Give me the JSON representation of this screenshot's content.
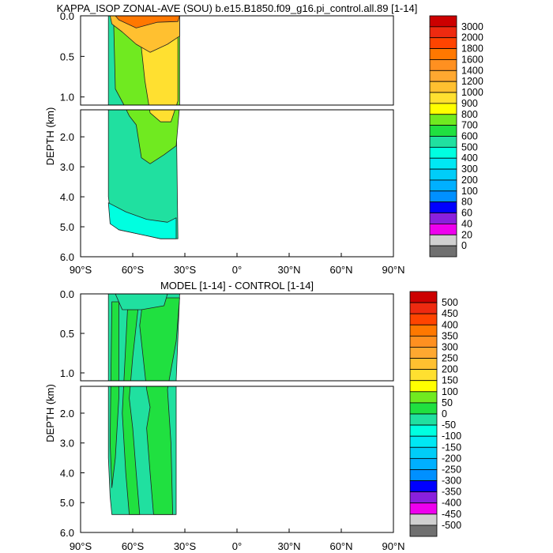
{
  "chart_data": [
    {
      "type": "heatmap",
      "title": "KAPPA_ISOP ZONAL-AVE (SOU) b.e15.B1850.f09_g16.pi_control.all.89 [1-14]",
      "xlabel": "",
      "ylabel": "DEPTH (km)",
      "x_ticks": [
        "90°S",
        "60°S",
        "30°S",
        "0°",
        "30°N",
        "60°N",
        "90°N"
      ],
      "xlim": [
        -90,
        90
      ],
      "y_ticks_upper": [
        "0.0",
        "0.5",
        "1.0"
      ],
      "y_ticks_lower": [
        "2.0",
        "3.0",
        "4.0",
        "5.0",
        "6.0"
      ],
      "ylim": [
        0,
        6
      ],
      "depth_break": 1.1,
      "colorbar_levels": [
        "3000",
        "2000",
        "1800",
        "1600",
        "1400",
        "1200",
        "1000",
        "900",
        "800",
        "700",
        "600",
        "500",
        "400",
        "300",
        "200",
        "100",
        "80",
        "60",
        "40",
        "20",
        "0"
      ],
      "colorbar_colors": [
        "#cc0000",
        "#ee2a10",
        "#ff4400",
        "#ff7800",
        "#ff9020",
        "#ffa830",
        "#ffc030",
        "#ffe030",
        "#ffff00",
        "#70ea20",
        "#20e040",
        "#20e0a0",
        "#00ffe0",
        "#00e8f4",
        "#00cdf8",
        "#00b0ff",
        "#0090ff",
        "#0000ff",
        "#8a20dd",
        "#ee00ee",
        "#d0d0d0",
        "#707070"
      ],
      "regions": [
        {
          "name": "base",
          "value": 500,
          "poly": [
            [
              -74,
              0
            ],
            [
              -33,
              0
            ],
            [
              -35,
              1.1
            ],
            [
              -34,
              5.4
            ],
            [
              -44,
              5.4
            ],
            [
              -52,
              5.3
            ],
            [
              -60,
              5.2
            ],
            [
              -68,
              5.1
            ],
            [
              -72,
              4.9
            ],
            [
              -74,
              4
            ]
          ]
        },
        {
          "name": "deep",
          "value": 400,
          "poly": [
            [
              -74,
              4.2
            ],
            [
              -64,
              4.5
            ],
            [
              -52,
              4.75
            ],
            [
              -40,
              4.85
            ],
            [
              -35,
              4.7
            ],
            [
              -35,
              5.4
            ],
            [
              -44,
              5.4
            ],
            [
              -52,
              5.3
            ],
            [
              -60,
              5.2
            ],
            [
              -68,
              5.1
            ],
            [
              -73,
              4.9
            ]
          ]
        },
        {
          "name": "upper-green",
          "value": 700,
          "poly": [
            [
              -71,
              0.05
            ],
            [
              -33,
              0.05
            ],
            [
              -33,
              1.1
            ],
            [
              -35,
              2.3
            ],
            [
              -42,
              2.6
            ],
            [
              -50,
              2.9
            ],
            [
              -55,
              2.7
            ],
            [
              -58,
              1.6
            ],
            [
              -62,
              1.3
            ],
            [
              -65,
              1.1
            ],
            [
              -70,
              0.9
            ]
          ]
        },
        {
          "name": "yellow",
          "value": 900,
          "poly": [
            [
              -56,
              0.1
            ],
            [
              -34,
              0.1
            ],
            [
              -34,
              1.05
            ],
            [
              -38,
              1.5
            ],
            [
              -44,
              1.5
            ],
            [
              -50,
              1.2
            ],
            [
              -53,
              0.8
            ],
            [
              -55,
              0.4
            ]
          ]
        },
        {
          "name": "orange",
          "value": 1100,
          "poly": [
            [
              -73,
              0
            ],
            [
              -33,
              0
            ],
            [
              -33,
              0.25
            ],
            [
              -40,
              0.35
            ],
            [
              -50,
              0.45
            ],
            [
              -58,
              0.35
            ],
            [
              -66,
              0.2
            ],
            [
              -72,
              0.1
            ]
          ]
        },
        {
          "name": "surface",
          "value": 1600,
          "poly": [
            [
              -70,
              0
            ],
            [
              -33,
              0
            ],
            [
              -34,
              0.07
            ],
            [
              -46,
              0.08
            ],
            [
              -58,
              0.15
            ],
            [
              -68,
              0.05
            ]
          ]
        }
      ]
    },
    {
      "type": "heatmap",
      "title": "MODEL [1-14] - CONTROL [1-14]",
      "xlabel": "",
      "ylabel": "DEPTH (km)",
      "x_ticks": [
        "90°S",
        "60°S",
        "30°S",
        "0°",
        "30°N",
        "60°N",
        "90°N"
      ],
      "xlim": [
        -90,
        90
      ],
      "y_ticks_upper": [
        "0.0",
        "0.5",
        "1.0"
      ],
      "y_ticks_lower": [
        "2.0",
        "3.0",
        "4.0",
        "5.0",
        "6.0"
      ],
      "ylim": [
        0,
        6
      ],
      "depth_break": 1.1,
      "colorbar_levels": [
        "500",
        "450",
        "400",
        "350",
        "300",
        "250",
        "200",
        "150",
        "100",
        "50",
        "0",
        "-50",
        "-100",
        "-150",
        "-200",
        "-250",
        "-300",
        "-350",
        "-400",
        "-450",
        "-500"
      ],
      "colorbar_colors": [
        "#cc0000",
        "#ee2a10",
        "#ff4400",
        "#ff7800",
        "#ff9020",
        "#ffa830",
        "#ffc030",
        "#ffe030",
        "#ffff00",
        "#70ea20",
        "#20e040",
        "#20e0a0",
        "#00ffe0",
        "#00e8f4",
        "#00cdf8",
        "#00b0ff",
        "#0090ff",
        "#0000ff",
        "#8a20dd",
        "#ee00ee",
        "#d0d0d0",
        "#707070"
      ],
      "regions": [
        {
          "name": "base",
          "value": -20,
          "poly": [
            [
              -74,
              0
            ],
            [
              -33,
              0
            ],
            [
              -35,
              1.1
            ],
            [
              -35,
              5.4
            ],
            [
              -72,
              5.4
            ],
            [
              -73,
              4.8
            ],
            [
              -74,
              3.5
            ]
          ]
        },
        {
          "name": "band-a",
          "value": 20,
          "poly": [
            [
              -72,
              0.1
            ],
            [
              -68,
              0.1
            ],
            [
              -68,
              1.5
            ],
            [
              -70,
              3.5
            ],
            [
              -72,
              4.5
            ],
            [
              -73,
              3
            ]
          ]
        },
        {
          "name": "band-b",
          "value": 20,
          "poly": [
            [
              -63,
              0.2
            ],
            [
              -57,
              0.2
            ],
            [
              -60,
              0.8
            ],
            [
              -62,
              1.5
            ],
            [
              -60,
              2.5
            ],
            [
              -58,
              4
            ],
            [
              -56,
              5.4
            ],
            [
              -62,
              5.4
            ],
            [
              -64,
              4
            ],
            [
              -66,
              2
            ]
          ]
        },
        {
          "name": "band-c",
          "value": 20,
          "poly": [
            [
              -54,
              0.05
            ],
            [
              -33,
              0.05
            ],
            [
              -35,
              0.6
            ],
            [
              -40,
              1.2
            ],
            [
              -38,
              3
            ],
            [
              -37,
              5.4
            ],
            [
              -48,
              5.4
            ],
            [
              -50,
              4
            ],
            [
              -52,
              2.5
            ],
            [
              -50,
              1.8
            ],
            [
              -52,
              1.2
            ],
            [
              -56,
              0.4
            ]
          ]
        },
        {
          "name": "upper-cyan",
          "value": -30,
          "poly": [
            [
              -70,
              0
            ],
            [
              -40,
              0
            ],
            [
              -42,
              0.15
            ],
            [
              -55,
              0.2
            ],
            [
              -66,
              0.2
            ]
          ]
        }
      ]
    }
  ]
}
